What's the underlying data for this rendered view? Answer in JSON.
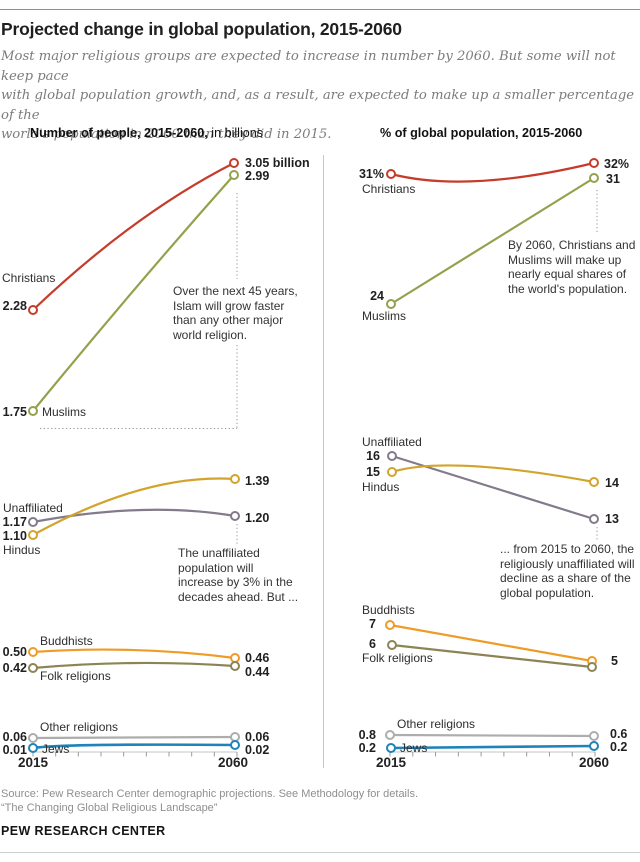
{
  "header": {
    "title": "Projected change in global population, 2015-2060",
    "subtitle_l1": "Most major religious groups are expected to increase in number by 2060. But some will not keep pace",
    "subtitle_l2": "with global population growth, and, as a result, are expected to make up a smaller percentage of the",
    "subtitle_l3": "world's population in 2060 than they did in 2015."
  },
  "left_panel": {
    "title_bold": "Number of people, 2015-2060,",
    "title_rest": " in billions",
    "christians": {
      "label": "Christians",
      "start_value": "2.28",
      "end_value": "3.05 billion"
    },
    "muslims": {
      "label": "Muslims",
      "start_value": "1.75",
      "end_value": "2.99"
    },
    "unaffiliated": {
      "label": "Unaffiliated",
      "start_value": "1.17",
      "end_value": "1.20"
    },
    "hindus": {
      "label": "Hindus",
      "start_value": "1.10",
      "end_value": "1.39"
    },
    "buddhists": {
      "label": "Buddhists",
      "start_value": "0.50",
      "end_value": "0.46"
    },
    "folk": {
      "label": "Folk religions",
      "start_value": "0.42",
      "end_value": "0.44"
    },
    "other": {
      "label": "Other religions",
      "start_value": "0.06",
      "end_value": "0.06"
    },
    "jews": {
      "label": "Jews",
      "start_value": "0.01",
      "end_value": "0.02"
    },
    "annotation_islam": {
      "l1": "Over the next 45 years,",
      "l2": "Islam will grow faster",
      "l3": "than any other major",
      "l4": "world religion."
    },
    "annotation_unaffiliated": {
      "l1": "The unaffiliated",
      "l2": "population will",
      "l3": "increase by 3% in the",
      "l4": "decades ahead. But ..."
    },
    "axis_start": "2015",
    "axis_end": "2060"
  },
  "right_panel": {
    "title": "% of global population, 2015-2060",
    "christians": {
      "label": "Christians",
      "start_value": "31%",
      "end_value": "32%"
    },
    "muslims": {
      "label": "Muslims",
      "start_value": "24",
      "end_value": "31"
    },
    "unaffiliated": {
      "label": "Unaffiliated",
      "start_value": "16",
      "end_value": "13"
    },
    "hindus": {
      "label": "Hindus",
      "start_value": "15",
      "end_value": "14"
    },
    "buddhists": {
      "label": "Buddhists",
      "start_value": "7"
    },
    "folk": {
      "label": "Folk religions",
      "start_value": "6"
    },
    "shared_end_value": "5",
    "other": {
      "label": "Other religions",
      "start_value": "0.8",
      "end_value": "0.6"
    },
    "jews": {
      "label": "Jews",
      "start_value": "0.2",
      "end_value": "0.2"
    },
    "annotation_equal": {
      "l1": "By 2060, Christians and",
      "l2": "Muslims will make up",
      "l3": "nearly equal shares of",
      "l4": "the world's population."
    },
    "annotation_decline": {
      "l1": "... from 2015 to 2060, the",
      "l2": "religiously unaffiliated will",
      "l3": "decline as a share of the",
      "l4": "global population."
    },
    "axis_start": "2015",
    "axis_end": "2060"
  },
  "footer": {
    "source_l1": "Source: Pew Research Center demographic projections. See Methodology for details.",
    "source_l2": "“The Changing Global Religious Landscape”",
    "brand": "PEW RESEARCH CENTER"
  },
  "chart_data": [
    {
      "type": "line",
      "title": "Number of people, 2015-2060, in billions",
      "x": [
        2015,
        2060
      ],
      "unit": "billions",
      "series": [
        {
          "key": "christians",
          "name": "Christians",
          "values": [
            2.28,
            3.05
          ],
          "color": "#c53c2b"
        },
        {
          "key": "muslims",
          "name": "Muslims",
          "values": [
            1.75,
            2.99
          ],
          "color": "#94a14c"
        },
        {
          "key": "unaffiliated",
          "name": "Unaffiliated",
          "values": [
            1.17,
            1.2
          ],
          "color": "#837b8b"
        },
        {
          "key": "hindus",
          "name": "Hindus",
          "values": [
            1.1,
            1.39
          ],
          "color": "#d2a42c"
        },
        {
          "key": "buddhists",
          "name": "Buddhists",
          "values": [
            0.5,
            0.46
          ],
          "color": "#ee9b27"
        },
        {
          "key": "folk",
          "name": "Folk religions",
          "values": [
            0.42,
            0.44
          ],
          "color": "#8c8455"
        },
        {
          "key": "other",
          "name": "Other religions",
          "values": [
            0.06,
            0.06
          ],
          "color": "#adadad"
        },
        {
          "key": "jews",
          "name": "Jews",
          "values": [
            0.01,
            0.02
          ],
          "color": "#1d83b8"
        }
      ],
      "legend_position": "inline-labels",
      "grid": false
    },
    {
      "type": "line",
      "title": "% of global population, 2015-2060",
      "x": [
        2015,
        2060
      ],
      "unit": "percent",
      "series": [
        {
          "key": "christians",
          "name": "Christians",
          "values": [
            31,
            32
          ],
          "color": "#c53c2b"
        },
        {
          "key": "muslims",
          "name": "Muslims",
          "values": [
            24,
            31
          ],
          "color": "#94a14c"
        },
        {
          "key": "unaffiliated",
          "name": "Unaffiliated",
          "values": [
            16,
            13
          ],
          "color": "#837b8b"
        },
        {
          "key": "hindus",
          "name": "Hindus",
          "values": [
            15,
            14
          ],
          "color": "#d2a42c"
        },
        {
          "key": "buddhists",
          "name": "Buddhists",
          "values": [
            7,
            5
          ],
          "color": "#ee9b27"
        },
        {
          "key": "folk",
          "name": "Folk religions",
          "values": [
            6,
            5
          ],
          "color": "#8c8455"
        },
        {
          "key": "other",
          "name": "Other religions",
          "values": [
            0.8,
            0.6
          ],
          "color": "#adadad"
        },
        {
          "key": "jews",
          "name": "Jews",
          "values": [
            0.2,
            0.2
          ],
          "color": "#1d83b8"
        }
      ],
      "legend_position": "inline-labels",
      "grid": false
    }
  ]
}
